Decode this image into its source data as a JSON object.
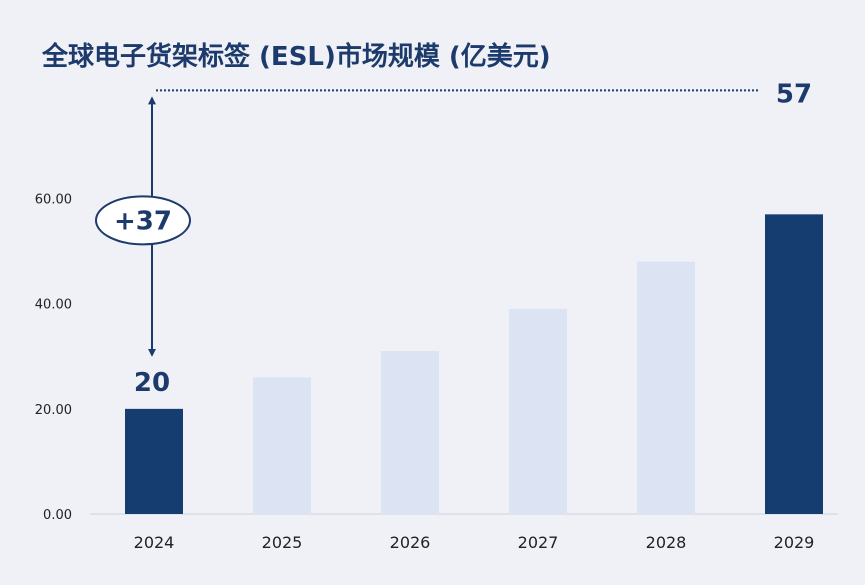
{
  "chart_data": {
    "type": "bar",
    "title": "全球电子货架标签 (ESL)市场规模 (亿美元)",
    "categories": [
      "2024",
      "2025",
      "2026",
      "2027",
      "2028",
      "2029"
    ],
    "values": [
      20,
      26,
      31,
      39,
      48,
      57
    ],
    "highlighted": [
      "2024",
      "2029"
    ],
    "yticks": [
      "0.00",
      "20.00",
      "40.00",
      "60.00"
    ],
    "ylim": [
      0,
      70
    ],
    "xlabel": "",
    "ylabel": "",
    "annotations": {
      "start_label": "20",
      "end_label": "57",
      "growth_label": "+37"
    },
    "colors": {
      "highlight": "#153d70",
      "normal": "#dce4f4",
      "text": "#1c3a6b"
    }
  }
}
